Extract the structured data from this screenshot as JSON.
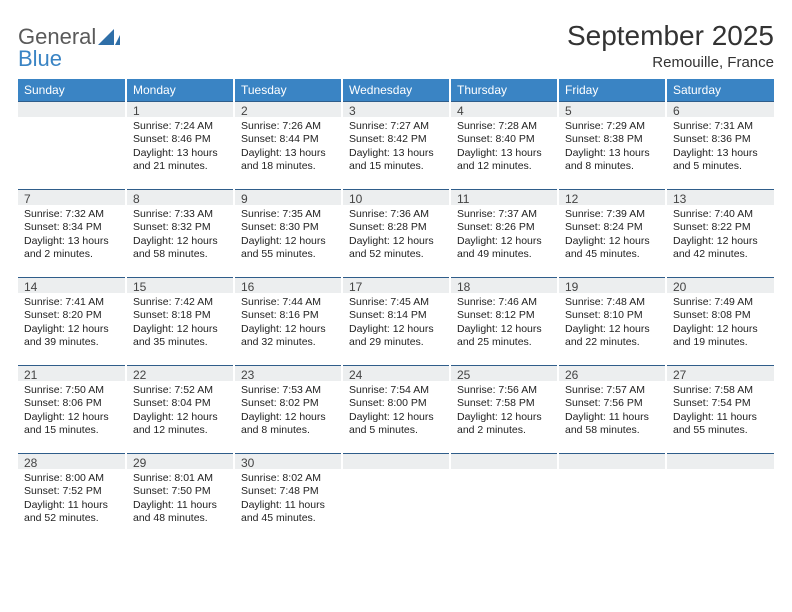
{
  "brand": {
    "part1": "General",
    "part2": "Blue"
  },
  "title": "September 2025",
  "location": "Remouille, France",
  "colors": {
    "header_bg": "#3a84c4",
    "header_text": "#ffffff",
    "daynum_bg": "#eceeef",
    "daynum_border_top": "#2f5d8a",
    "text": "#222222",
    "title_text": "#333333"
  },
  "day_headers": [
    "Sunday",
    "Monday",
    "Tuesday",
    "Wednesday",
    "Thursday",
    "Friday",
    "Saturday"
  ],
  "weeks": [
    [
      {
        "num": "",
        "lines": []
      },
      {
        "num": "1",
        "lines": [
          "Sunrise: 7:24 AM",
          "Sunset: 8:46 PM",
          "Daylight: 13 hours and 21 minutes."
        ]
      },
      {
        "num": "2",
        "lines": [
          "Sunrise: 7:26 AM",
          "Sunset: 8:44 PM",
          "Daylight: 13 hours and 18 minutes."
        ]
      },
      {
        "num": "3",
        "lines": [
          "Sunrise: 7:27 AM",
          "Sunset: 8:42 PM",
          "Daylight: 13 hours and 15 minutes."
        ]
      },
      {
        "num": "4",
        "lines": [
          "Sunrise: 7:28 AM",
          "Sunset: 8:40 PM",
          "Daylight: 13 hours and 12 minutes."
        ]
      },
      {
        "num": "5",
        "lines": [
          "Sunrise: 7:29 AM",
          "Sunset: 8:38 PM",
          "Daylight: 13 hours and 8 minutes."
        ]
      },
      {
        "num": "6",
        "lines": [
          "Sunrise: 7:31 AM",
          "Sunset: 8:36 PM",
          "Daylight: 13 hours and 5 minutes."
        ]
      }
    ],
    [
      {
        "num": "7",
        "lines": [
          "Sunrise: 7:32 AM",
          "Sunset: 8:34 PM",
          "Daylight: 13 hours and 2 minutes."
        ]
      },
      {
        "num": "8",
        "lines": [
          "Sunrise: 7:33 AM",
          "Sunset: 8:32 PM",
          "Daylight: 12 hours and 58 minutes."
        ]
      },
      {
        "num": "9",
        "lines": [
          "Sunrise: 7:35 AM",
          "Sunset: 8:30 PM",
          "Daylight: 12 hours and 55 minutes."
        ]
      },
      {
        "num": "10",
        "lines": [
          "Sunrise: 7:36 AM",
          "Sunset: 8:28 PM",
          "Daylight: 12 hours and 52 minutes."
        ]
      },
      {
        "num": "11",
        "lines": [
          "Sunrise: 7:37 AM",
          "Sunset: 8:26 PM",
          "Daylight: 12 hours and 49 minutes."
        ]
      },
      {
        "num": "12",
        "lines": [
          "Sunrise: 7:39 AM",
          "Sunset: 8:24 PM",
          "Daylight: 12 hours and 45 minutes."
        ]
      },
      {
        "num": "13",
        "lines": [
          "Sunrise: 7:40 AM",
          "Sunset: 8:22 PM",
          "Daylight: 12 hours and 42 minutes."
        ]
      }
    ],
    [
      {
        "num": "14",
        "lines": [
          "Sunrise: 7:41 AM",
          "Sunset: 8:20 PM",
          "Daylight: 12 hours and 39 minutes."
        ]
      },
      {
        "num": "15",
        "lines": [
          "Sunrise: 7:42 AM",
          "Sunset: 8:18 PM",
          "Daylight: 12 hours and 35 minutes."
        ]
      },
      {
        "num": "16",
        "lines": [
          "Sunrise: 7:44 AM",
          "Sunset: 8:16 PM",
          "Daylight: 12 hours and 32 minutes."
        ]
      },
      {
        "num": "17",
        "lines": [
          "Sunrise: 7:45 AM",
          "Sunset: 8:14 PM",
          "Daylight: 12 hours and 29 minutes."
        ]
      },
      {
        "num": "18",
        "lines": [
          "Sunrise: 7:46 AM",
          "Sunset: 8:12 PM",
          "Daylight: 12 hours and 25 minutes."
        ]
      },
      {
        "num": "19",
        "lines": [
          "Sunrise: 7:48 AM",
          "Sunset: 8:10 PM",
          "Daylight: 12 hours and 22 minutes."
        ]
      },
      {
        "num": "20",
        "lines": [
          "Sunrise: 7:49 AM",
          "Sunset: 8:08 PM",
          "Daylight: 12 hours and 19 minutes."
        ]
      }
    ],
    [
      {
        "num": "21",
        "lines": [
          "Sunrise: 7:50 AM",
          "Sunset: 8:06 PM",
          "Daylight: 12 hours and 15 minutes."
        ]
      },
      {
        "num": "22",
        "lines": [
          "Sunrise: 7:52 AM",
          "Sunset: 8:04 PM",
          "Daylight: 12 hours and 12 minutes."
        ]
      },
      {
        "num": "23",
        "lines": [
          "Sunrise: 7:53 AM",
          "Sunset: 8:02 PM",
          "Daylight: 12 hours and 8 minutes."
        ]
      },
      {
        "num": "24",
        "lines": [
          "Sunrise: 7:54 AM",
          "Sunset: 8:00 PM",
          "Daylight: 12 hours and 5 minutes."
        ]
      },
      {
        "num": "25",
        "lines": [
          "Sunrise: 7:56 AM",
          "Sunset: 7:58 PM",
          "Daylight: 12 hours and 2 minutes."
        ]
      },
      {
        "num": "26",
        "lines": [
          "Sunrise: 7:57 AM",
          "Sunset: 7:56 PM",
          "Daylight: 11 hours and 58 minutes."
        ]
      },
      {
        "num": "27",
        "lines": [
          "Sunrise: 7:58 AM",
          "Sunset: 7:54 PM",
          "Daylight: 11 hours and 55 minutes."
        ]
      }
    ],
    [
      {
        "num": "28",
        "lines": [
          "Sunrise: 8:00 AM",
          "Sunset: 7:52 PM",
          "Daylight: 11 hours and 52 minutes."
        ]
      },
      {
        "num": "29",
        "lines": [
          "Sunrise: 8:01 AM",
          "Sunset: 7:50 PM",
          "Daylight: 11 hours and 48 minutes."
        ]
      },
      {
        "num": "30",
        "lines": [
          "Sunrise: 8:02 AM",
          "Sunset: 7:48 PM",
          "Daylight: 11 hours and 45 minutes."
        ]
      },
      {
        "num": "",
        "lines": []
      },
      {
        "num": "",
        "lines": []
      },
      {
        "num": "",
        "lines": []
      },
      {
        "num": "",
        "lines": []
      }
    ]
  ]
}
